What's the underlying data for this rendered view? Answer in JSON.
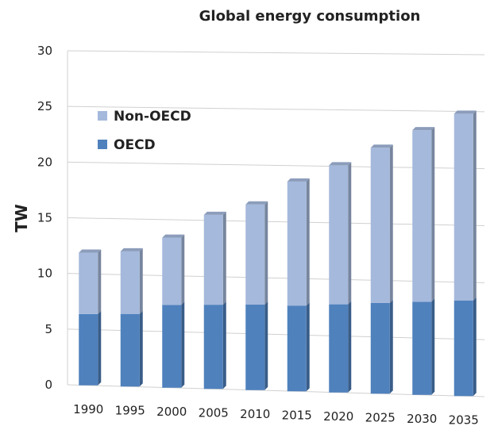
{
  "chart_data": {
    "type": "bar",
    "stacked": true,
    "title": "Global energy consumption",
    "xlabel": "",
    "ylabel": "TW",
    "ylim": [
      0,
      30
    ],
    "yticks": [
      0,
      5,
      10,
      15,
      20,
      25,
      30
    ],
    "grid": true,
    "legend_position": "top-left",
    "categories": [
      "1990",
      "1995",
      "2000",
      "2005",
      "2010",
      "2015",
      "2020",
      "2025",
      "2030",
      "2035"
    ],
    "series": [
      {
        "name": "OECD",
        "color": "#4f81bd",
        "values": [
          6.4,
          6.5,
          7.4,
          7.5,
          7.6,
          7.6,
          7.8,
          8.0,
          8.2,
          8.4
        ]
      },
      {
        "name": "Non-OECD",
        "color": "#a5b9dc",
        "values": [
          5.5,
          5.6,
          6.0,
          8.0,
          8.9,
          11.0,
          12.3,
          13.7,
          15.1,
          16.4
        ]
      }
    ],
    "legend": [
      {
        "name": "Non-OECD",
        "color": "#a5b9dc"
      },
      {
        "name": "OECD",
        "color": "#4f81bd"
      }
    ]
  }
}
